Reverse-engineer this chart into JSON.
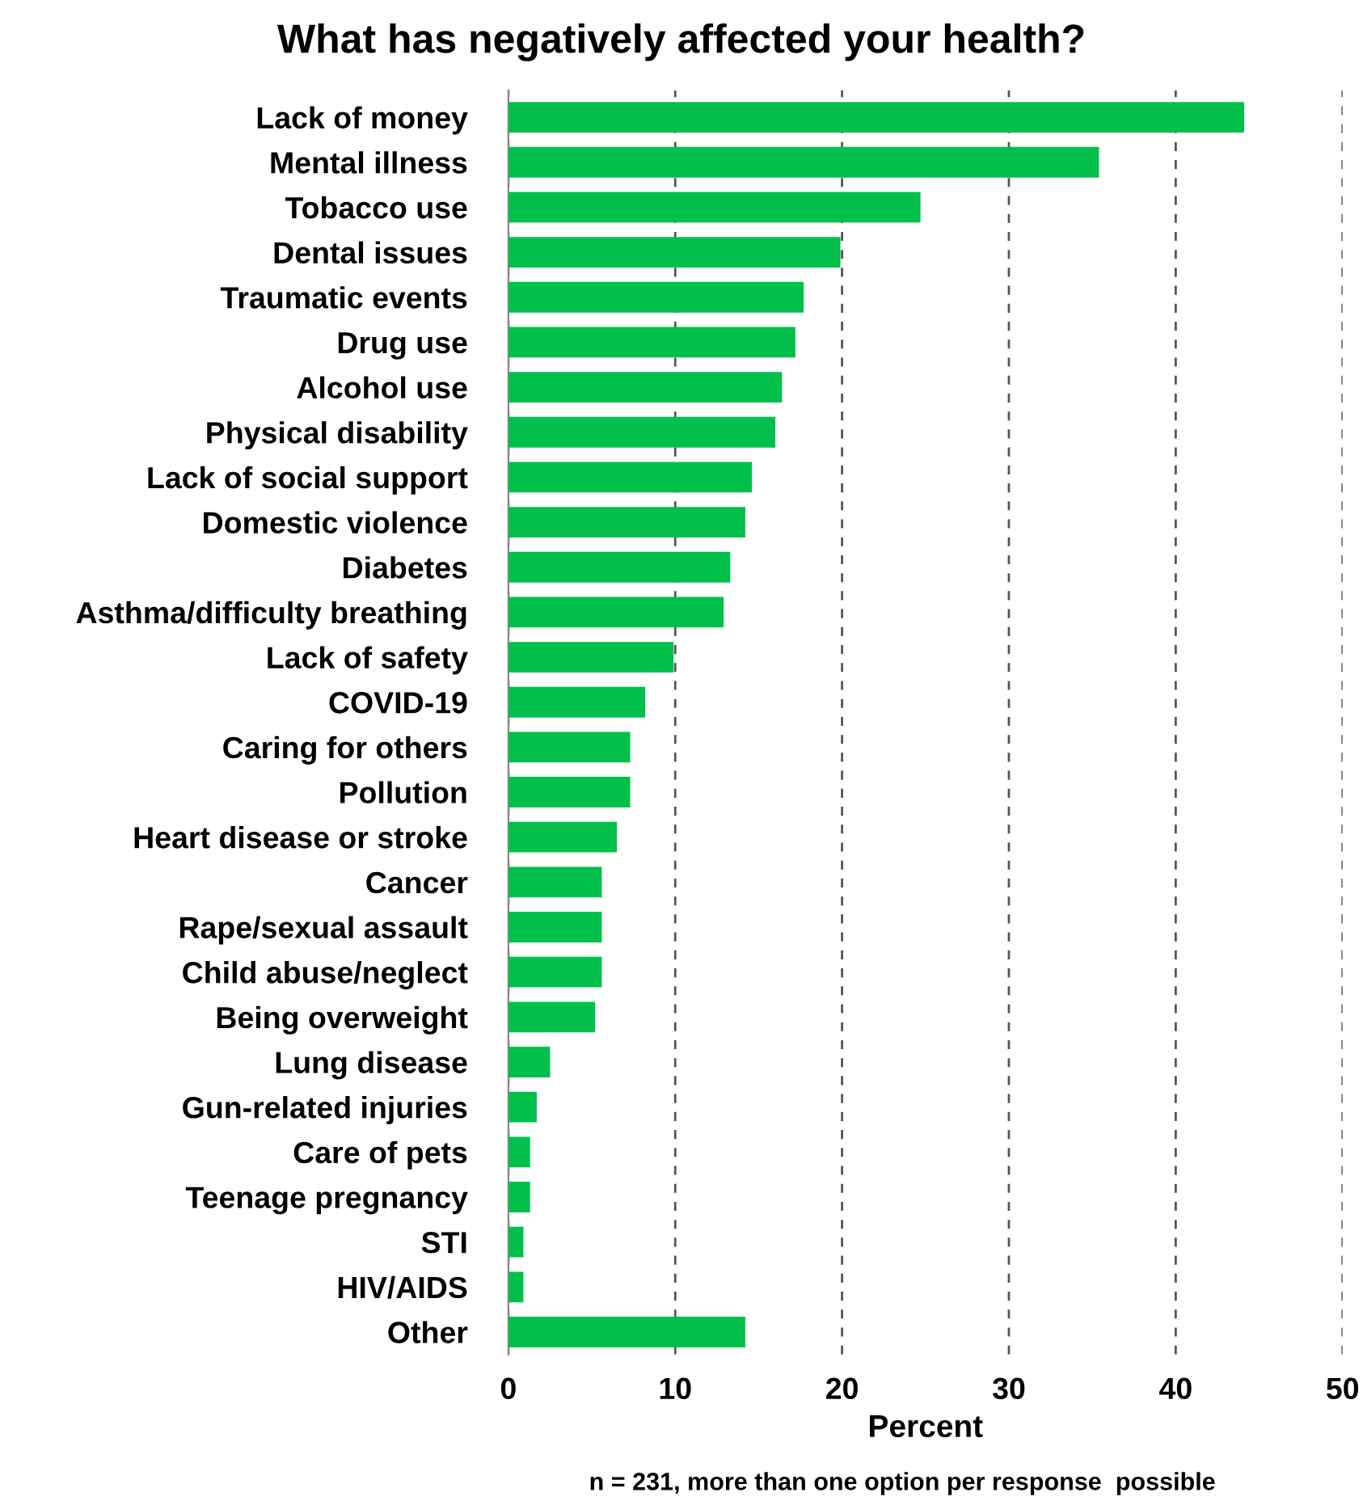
{
  "chart_data": {
    "type": "bar",
    "orientation": "horizontal",
    "title": "What has negatively affected your health?",
    "xlabel": "Percent",
    "annotations": [
      "n = 231, more than one option per response  possible"
    ],
    "categories": [
      "Lack of money",
      "Mental illness",
      "Tobacco use",
      "Dental issues",
      "Traumatic events",
      "Drug use",
      "Alcohol use",
      "Physical disability",
      "Lack of social support",
      "Domestic violence",
      "Diabetes",
      "Asthma/difficulty breathing",
      "Lack of safety",
      "COVID-19",
      "Caring for others",
      "Pollution",
      "Heart disease or stroke",
      "Cancer",
      "Rape/sexual assault",
      "Child abuse/neglect",
      "Being overweight",
      "Lung disease",
      "Gun-related injuries",
      "Care of pets",
      "Teenage pregnancy",
      "STI",
      "HIV/AIDS",
      "Other"
    ],
    "values": [
      44.1,
      35.4,
      24.7,
      19.9,
      17.7,
      17.2,
      16.4,
      16.0,
      14.6,
      14.2,
      13.3,
      12.9,
      9.9,
      8.2,
      7.3,
      7.3,
      6.5,
      5.6,
      5.6,
      5.6,
      5.2,
      2.5,
      1.7,
      1.3,
      1.3,
      0.9,
      0.9,
      14.2
    ],
    "color": "#00c04b",
    "xlim": [
      0,
      50
    ],
    "xticks": [
      0,
      10,
      20,
      30,
      40,
      50
    ],
    "grid": "x",
    "legend": false
  }
}
